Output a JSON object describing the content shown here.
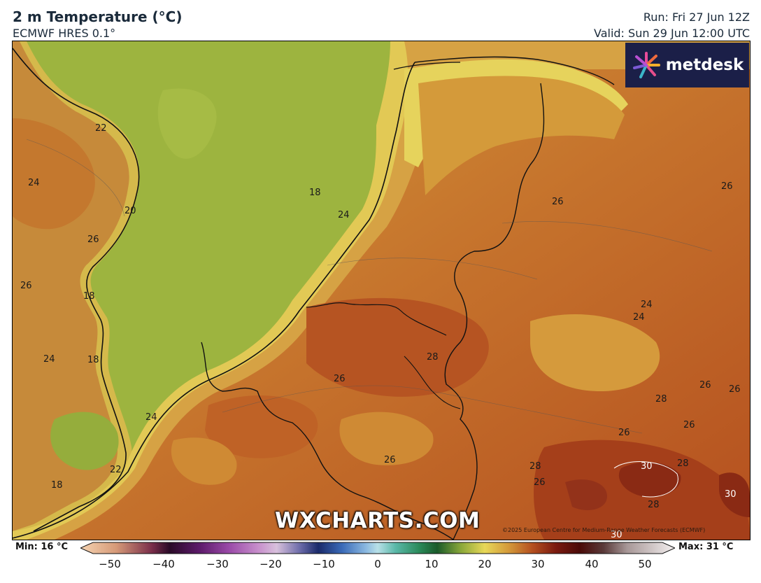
{
  "header": {
    "title": "2 m Temperature (°C)",
    "model": "ECMWF HRES 0.1°",
    "run": "Run: Fri 27 Jun 12Z",
    "valid": "Valid: Sun 29 Jun 12:00 UTC"
  },
  "logo": {
    "text": "metdesk"
  },
  "watermark": "WXCHARTS.COM",
  "copyright": "©2025 European Centre for Medium-Range Weather Forecasts (ECMWF)",
  "colorbar": {
    "min_label": "Min: 16 °C",
    "max_label": "Max: 31 °C",
    "ticks": [
      "−50",
      "−40",
      "−30",
      "−20",
      "−10",
      "0",
      "10",
      "20",
      "30",
      "40",
      "50"
    ],
    "range": [
      -50,
      50
    ]
  },
  "contour_labels": [
    {
      "text": "22"
    },
    {
      "text": "24"
    },
    {
      "text": "20"
    },
    {
      "text": "26"
    },
    {
      "text": "26"
    },
    {
      "text": "18"
    },
    {
      "text": "24"
    },
    {
      "text": "18"
    },
    {
      "text": "24"
    },
    {
      "text": "22"
    },
    {
      "text": "18"
    },
    {
      "text": "18"
    },
    {
      "text": "24"
    },
    {
      "text": "26"
    },
    {
      "text": "26"
    },
    {
      "text": "24"
    },
    {
      "text": "24"
    },
    {
      "text": "28"
    },
    {
      "text": "26"
    },
    {
      "text": "26"
    },
    {
      "text": "26"
    },
    {
      "text": "28"
    },
    {
      "text": "26"
    },
    {
      "text": "26"
    },
    {
      "text": "30"
    },
    {
      "text": "28"
    },
    {
      "text": "28"
    },
    {
      "text": "26"
    },
    {
      "text": "30"
    },
    {
      "text": "28"
    },
    {
      "text": "30"
    }
  ]
}
